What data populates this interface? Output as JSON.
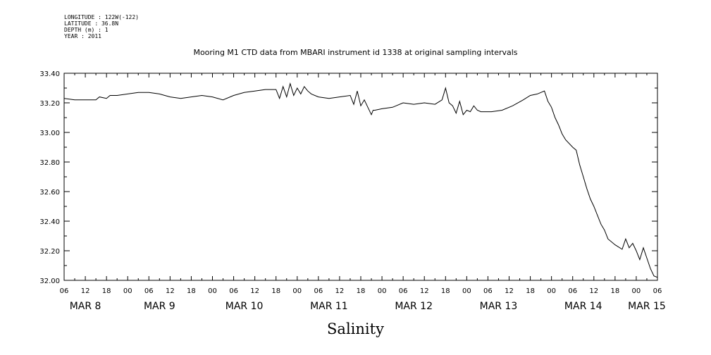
{
  "metadata": [
    "LONGITUDE : 122W(-122)",
    "LATITUDE : 36.8N",
    "DEPTH (m) : 1",
    "YEAR : 2011"
  ],
  "chart_data": {
    "type": "line",
    "title": "Mooring M1 CTD data from MBARI instrument id 1338 at original sampling intervals",
    "xlabel": "",
    "ylabel": "",
    "bottom_label": "Salinity",
    "x_unit": "hours since 2011-03-08 06:00",
    "xlim": [
      0,
      168
    ],
    "ylim": [
      32.0,
      33.4
    ],
    "yticks": [
      "33.40",
      "33.20",
      "33.00",
      "32.80",
      "32.60",
      "32.40",
      "32.20",
      "32.00"
    ],
    "xtick_labels": [
      "06",
      "12",
      "18",
      "00",
      "06",
      "12",
      "18",
      "00",
      "06",
      "12",
      "18",
      "00",
      "06",
      "12",
      "18",
      "00",
      "06",
      "12",
      "18",
      "00",
      "06",
      "12",
      "18",
      "00",
      "06",
      "12",
      "18",
      "00",
      "06"
    ],
    "day_labels": [
      {
        "label": "MAR  8",
        "hour": 6
      },
      {
        "label": "MAR  9",
        "hour": 27
      },
      {
        "label": "MAR 10",
        "hour": 51
      },
      {
        "label": "MAR 11",
        "hour": 75
      },
      {
        "label": "MAR 12",
        "hour": 99
      },
      {
        "label": "MAR 13",
        "hour": 123
      },
      {
        "label": "MAR 14",
        "hour": 147
      },
      {
        "label": "MAR 15",
        "hour": 165
      }
    ],
    "grid": false,
    "series": [
      {
        "x": [
          0,
          3,
          6,
          9,
          10,
          12,
          13,
          15,
          18,
          21,
          24,
          27,
          30,
          33,
          36,
          39,
          42,
          45,
          48,
          51,
          54,
          57,
          60,
          61,
          62,
          63,
          64,
          65,
          66,
          67,
          68,
          69,
          70,
          72,
          75,
          78,
          81,
          82,
          83,
          84,
          85,
          86,
          87,
          87.5,
          88,
          90,
          93,
          96,
          99,
          102,
          105,
          107,
          108,
          109,
          110,
          111,
          112,
          113,
          114,
          115,
          116,
          117,
          118,
          121,
          124,
          127,
          130,
          132,
          134,
          136,
          137,
          138,
          139,
          140,
          141,
          142,
          144,
          145,
          146,
          147,
          148,
          149,
          150,
          151,
          152,
          153,
          154,
          156,
          158,
          159,
          160,
          161,
          162,
          163,
          164,
          165,
          166,
          167,
          168
        ],
        "y": [
          33.23,
          33.22,
          33.22,
          33.22,
          33.24,
          33.23,
          33.25,
          33.25,
          33.26,
          33.27,
          33.27,
          33.26,
          33.24,
          33.23,
          33.24,
          33.25,
          33.24,
          33.22,
          33.25,
          33.27,
          33.28,
          33.29,
          33.29,
          33.23,
          33.31,
          33.24,
          33.33,
          33.25,
          33.3,
          33.26,
          33.31,
          33.28,
          33.26,
          33.24,
          33.23,
          33.24,
          33.25,
          33.19,
          33.28,
          33.18,
          33.22,
          33.17,
          33.12,
          33.15,
          33.15,
          33.16,
          33.17,
          33.2,
          33.19,
          33.2,
          33.19,
          33.22,
          33.3,
          33.2,
          33.18,
          33.13,
          33.21,
          33.12,
          33.15,
          33.14,
          33.18,
          33.15,
          33.14,
          33.14,
          33.15,
          33.18,
          33.22,
          33.25,
          33.26,
          33.28,
          33.21,
          33.17,
          33.1,
          33.05,
          32.99,
          32.95,
          32.9,
          32.88,
          32.78,
          32.7,
          32.62,
          32.55,
          32.5,
          32.44,
          32.38,
          32.34,
          32.28,
          32.24,
          32.21,
          32.28,
          32.22,
          32.25,
          32.2,
          32.14,
          32.22,
          32.15,
          32.08,
          32.03,
          32.02
        ]
      }
    ]
  }
}
